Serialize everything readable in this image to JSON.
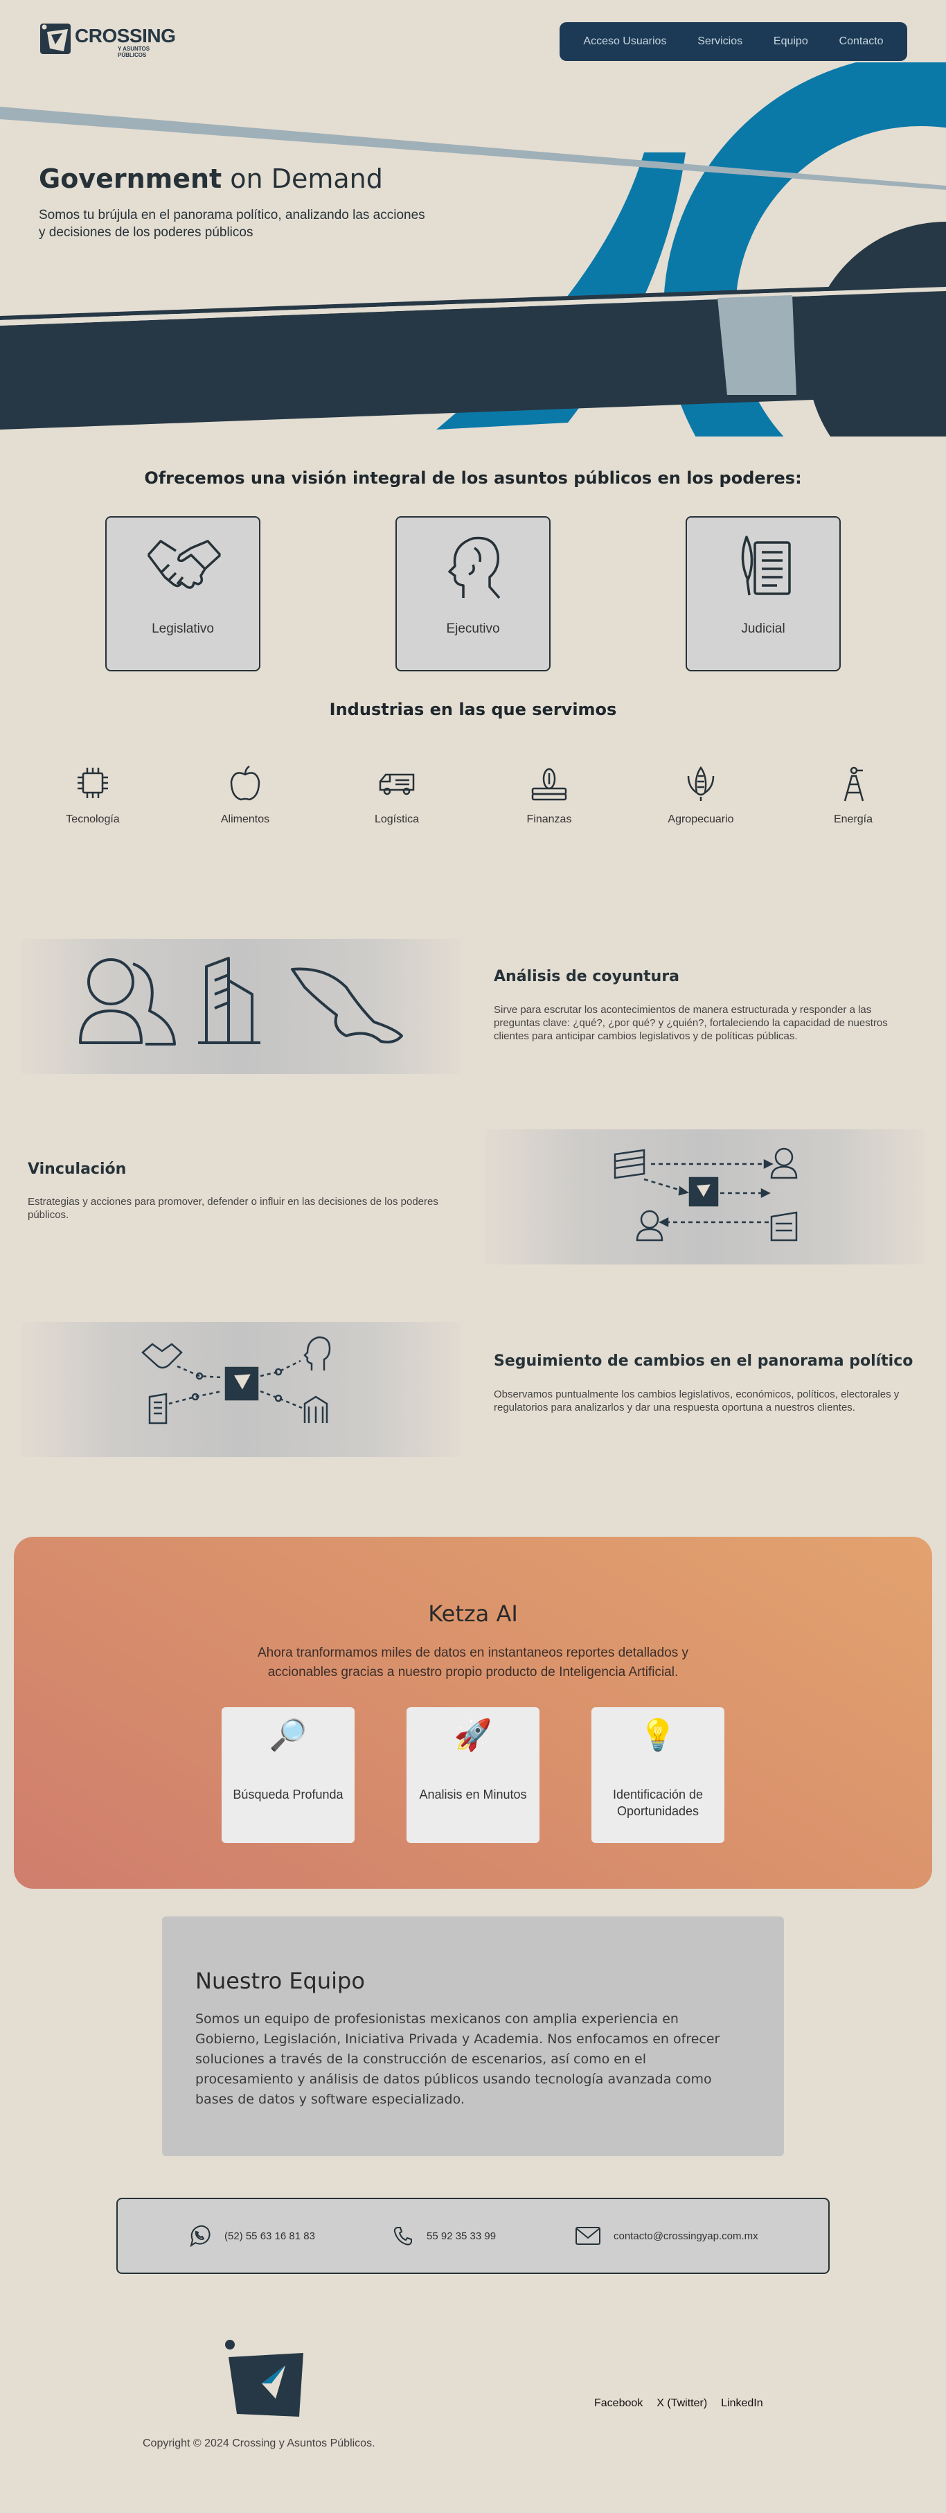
{
  "brand": {
    "name": "CROSSING",
    "subtitle": "Y ASUNTOS PÚBLICOS"
  },
  "nav": {
    "items": [
      "Acceso Usuarios",
      "Servicios",
      "Equipo",
      "Contacto"
    ]
  },
  "hero": {
    "title_bold": "Government",
    "title_rest": " on Demand",
    "subtitle": "Somos tu brújula en el panorama político, analizando las acciones y decisiones de los poderes públicos"
  },
  "powers": {
    "title": "Ofrecemos una visión integral de los asuntos públicos en los poderes:",
    "items": [
      {
        "label": "Legislativo",
        "icon": "handshake-icon"
      },
      {
        "label": "Ejecutivo",
        "icon": "head-profile-icon"
      },
      {
        "label": "Judicial",
        "icon": "document-quill-icon"
      }
    ]
  },
  "industries": {
    "title": "Industrias en las que servimos",
    "items": [
      {
        "label": "Tecnología",
        "icon": "chip-icon"
      },
      {
        "label": "Alimentos",
        "icon": "apple-icon"
      },
      {
        "label": "Logística",
        "icon": "truck-icon"
      },
      {
        "label": "Finanzas",
        "icon": "money-stack-icon"
      },
      {
        "label": "Agropecuario",
        "icon": "corn-icon"
      },
      {
        "label": "Energía",
        "icon": "oil-rig-icon"
      }
    ]
  },
  "features": [
    {
      "title": "Análisis de coyuntura",
      "desc": "Sirve para escrutar los acontecimientos de manera estructurada y responder a las preguntas clave: ¿qué?, ¿por qué? y ¿quién?, fortaleciendo la capacidad de nuestros clientes para anticipar cambios legislativos y de políticas públicas."
    },
    {
      "title": "Vinculación",
      "desc": "Estrategias y acciones para promover, defender o influir en las decisiones de los poderes públicos."
    },
    {
      "title": "Seguimiento de cambios en el panorama político",
      "desc": "Observamos puntualmente los cambios legislativos, económicos, políticos, electorales y regulatorios para analizarlos y dar una respuesta oportuna a nuestros clientes."
    }
  ],
  "ketza": {
    "title": "Ketza AI",
    "subtitle": "Ahora tranformamos miles de datos en instantaneos reportes detallados y accionables gracias a nuestro propio producto de Inteligencia Artificial.",
    "cards": [
      {
        "emoji": "🔎",
        "label": "Búsqueda Profunda"
      },
      {
        "emoji": "🚀",
        "label": "Analisis en Minutos"
      },
      {
        "emoji": "💡",
        "label": "Identificación de Oportunidades"
      }
    ]
  },
  "team": {
    "title": "Nuestro Equipo",
    "text": "Somos un equipo de profesionistas mexicanos con amplia experiencia en Gobierno, Legislación, Iniciativa Privada y Academia. Nos enfocamos en ofrecer soluciones a través de la construcción de escenarios, así como en el procesamiento y análisis de datos públicos usando tecnología avanzada como bases de datos y software especializado."
  },
  "contact": {
    "phone1": "(52) 55 63 16 81 83",
    "phone2": "55 92 35 33 99",
    "email": "contacto@crossingyap.com.mx"
  },
  "footer": {
    "links": [
      "Facebook",
      "X (Twitter)",
      "LinkedIn"
    ],
    "copyright": "Copyright © 2024 Crossing y Asuntos Públicos."
  },
  "colors": {
    "background": "#e4ddd2",
    "navy": "#263845",
    "blue": "#0b79a8",
    "accent_coral": "#d88f6c"
  }
}
